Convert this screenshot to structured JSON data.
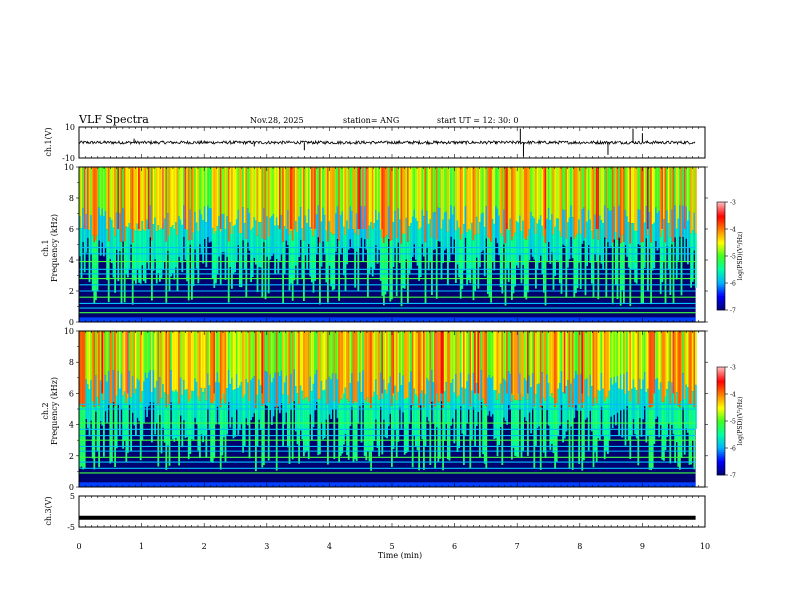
{
  "header": {
    "title": "VLF Spectra",
    "date": "Nov.28, 2025",
    "station": "station= ANG",
    "start": "start  UT =   12: 30: 0"
  },
  "chart_data": [
    {
      "type": "line",
      "name": "ch1-waveform",
      "ylabel": "ch.1(V)",
      "ylim": [
        -10,
        10
      ],
      "ytick_labels": [
        "10",
        "-10"
      ],
      "series": [
        {
          "name": "ch.1",
          "baseline": 0,
          "noise_amplitude": 1.0,
          "spikes": [
            {
              "t": 0.88,
              "v": 2.5
            },
            {
              "t": 2.8,
              "v": -2.5
            },
            {
              "t": 3.6,
              "v": -5
            },
            {
              "t": 7.05,
              "v": 9
            },
            {
              "t": 7.1,
              "v": -9
            },
            {
              "t": 8.45,
              "v": -8
            },
            {
              "t": 8.85,
              "v": 9
            },
            {
              "t": 9.0,
              "v": 6
            }
          ]
        }
      ]
    },
    {
      "type": "heatmap",
      "name": "ch1-spectrogram",
      "ylabel": "ch.1\nFrequency (kHz)",
      "ylim": [
        0,
        10
      ],
      "ytick_labels": [
        "0",
        "2",
        "4",
        "6",
        "8",
        "10"
      ],
      "color_range_log_psd": [
        -7,
        -3
      ],
      "horizontal_lines_khz": [
        0.6,
        0.9,
        1.2,
        1.6,
        2.0,
        2.4,
        2.8,
        3.1,
        3.4,
        3.9,
        4.4,
        4.8
      ],
      "colorbar": {
        "label": "log(PSD)(V²/Hz)",
        "ticks": [
          "-3",
          "-4",
          "-5",
          "-6",
          "-7"
        ]
      }
    },
    {
      "type": "heatmap",
      "name": "ch2-spectrogram",
      "ylabel": "ch.2\nFrequency (kHz)",
      "ylim": [
        0,
        10
      ],
      "ytick_labels": [
        "0",
        "2",
        "4",
        "6",
        "8",
        "10"
      ],
      "color_range_log_psd": [
        -7,
        -3
      ],
      "horizontal_lines_khz": [
        0.9,
        1.2,
        1.6,
        1.9,
        2.3,
        2.6,
        3.0,
        3.3,
        3.7,
        4.1,
        5.0,
        5.3
      ],
      "colorbar": {
        "label": "log(PSD)(V²/Hz)",
        "ticks": [
          "-3",
          "-4",
          "-5",
          "-6",
          "-7"
        ]
      }
    },
    {
      "type": "line",
      "name": "ch3-waveform",
      "ylabel": "ch.3(V)",
      "ylim": [
        -5,
        5
      ],
      "ytick_labels": [
        "5",
        "-5"
      ],
      "series": [
        {
          "name": "ch.3",
          "constant": -2
        }
      ]
    }
  ],
  "xaxis": {
    "label": "Time (min)",
    "xlim": [
      0,
      10
    ],
    "tick_labels": [
      "0",
      "1",
      "2",
      "3",
      "4",
      "5",
      "6",
      "7",
      "8",
      "9",
      "10"
    ],
    "data_end": 9.85
  },
  "colors": {
    "colormap": [
      "#00007a",
      "#0000ff",
      "#00b4ff",
      "#00ffa0",
      "#40ff20",
      "#ffff00",
      "#ff8000",
      "#ff0000",
      "#ffb0b0"
    ]
  }
}
